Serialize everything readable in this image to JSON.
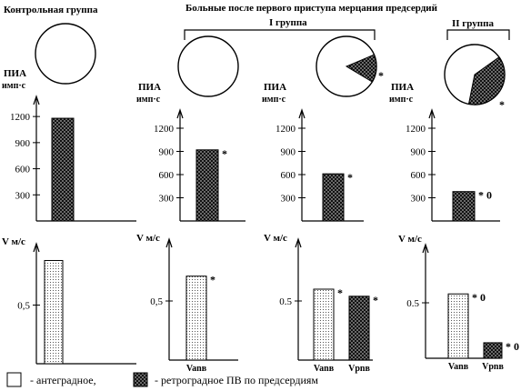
{
  "header": {
    "control_title": "Контрольная группа",
    "patients_title": "Больные после первого приступа мерцания предсердий",
    "group1_title": "I группа",
    "group2_title": "II группа"
  },
  "colors": {
    "line": "#000000",
    "fill": "#ffffff"
  },
  "legend": {
    "antegrade": "- антеградное,",
    "retrograde": "- ретроградное ПВ по предсердиям"
  },
  "chart_data": [
    {
      "type": "pie",
      "panel": "Контрольная группа",
      "slices": [
        {
          "name": "антеградное",
          "value": 100
        }
      ]
    },
    {
      "type": "pie",
      "panel": "I группа",
      "slices": [
        {
          "name": "антеградное",
          "value": 100
        }
      ]
    },
    {
      "type": "pie",
      "panel": "I группа",
      "slices": [
        {
          "name": "антеградное",
          "value": 85
        },
        {
          "name": "ретроградное",
          "value": 15
        }
      ],
      "marker": "*"
    },
    {
      "type": "pie",
      "panel": "II группа",
      "slices": [
        {
          "name": "антеградное",
          "value": 62
        },
        {
          "name": "ретроградное",
          "value": 38
        }
      ],
      "marker": "*"
    },
    {
      "type": "bar",
      "ylabel_lines": [
        "ПИА",
        "имп·с"
      ],
      "yticks": [
        300,
        600,
        900,
        1200
      ],
      "ylim": [
        0,
        1400
      ],
      "bars": [
        {
          "value": 1180,
          "kind": "retro"
        }
      ]
    },
    {
      "type": "bar",
      "ylabel_lines": [
        "ПИА",
        "имп·с"
      ],
      "yticks": [
        300,
        600,
        900,
        1200
      ],
      "ylim": [
        0,
        1400
      ],
      "bars": [
        {
          "value": 920,
          "kind": "retro",
          "marker": "*"
        }
      ]
    },
    {
      "type": "bar",
      "ylabel_lines": [
        "ПИА",
        "имп·с"
      ],
      "yticks": [
        300,
        600,
        900,
        1200
      ],
      "ylim": [
        0,
        1400
      ],
      "bars": [
        {
          "value": 610,
          "kind": "retro",
          "marker": "*"
        }
      ]
    },
    {
      "type": "bar",
      "ylabel_lines": [
        "ПИА",
        "имп·с"
      ],
      "yticks": [
        300,
        600,
        900,
        1200
      ],
      "ylim": [
        0,
        1400
      ],
      "bars": [
        {
          "value": 380,
          "kind": "retro",
          "marker": "* 0"
        }
      ]
    },
    {
      "type": "bar",
      "ylabel": "V м/с",
      "yticks": [
        0.5
      ],
      "ytick_labels": [
        "0,5"
      ],
      "ylim": [
        0,
        1.0
      ],
      "bars": [
        {
          "value": 0.88,
          "kind": "ante",
          "label": ""
        }
      ]
    },
    {
      "type": "bar",
      "ylabel": "V м/с",
      "yticks": [
        0.5
      ],
      "ytick_labels": [
        "0,5"
      ],
      "ylim": [
        0,
        1.0
      ],
      "bars": [
        {
          "value": 0.71,
          "kind": "ante",
          "label": "Vanв",
          "marker": "*"
        }
      ]
    },
    {
      "type": "bar",
      "ylabel": "V м/с",
      "yticks": [
        0.5
      ],
      "ytick_labels": [
        "0.5"
      ],
      "ylim": [
        0,
        1.0
      ],
      "bars": [
        {
          "value": 0.6,
          "kind": "ante",
          "label": "Vanв",
          "marker": "*"
        },
        {
          "value": 0.54,
          "kind": "retro",
          "label": "Vpnв",
          "marker": "*"
        }
      ]
    },
    {
      "type": "bar",
      "ylabel": "V м/с",
      "yticks": [
        0.5
      ],
      "ytick_labels": [
        "0.5"
      ],
      "ylim": [
        0,
        1.0
      ],
      "bars": [
        {
          "value": 0.58,
          "kind": "ante",
          "label": "Vanв",
          "marker": "* 0"
        },
        {
          "value": 0.14,
          "kind": "retro",
          "label": "Vpnв",
          "marker": "* 0"
        }
      ]
    }
  ]
}
